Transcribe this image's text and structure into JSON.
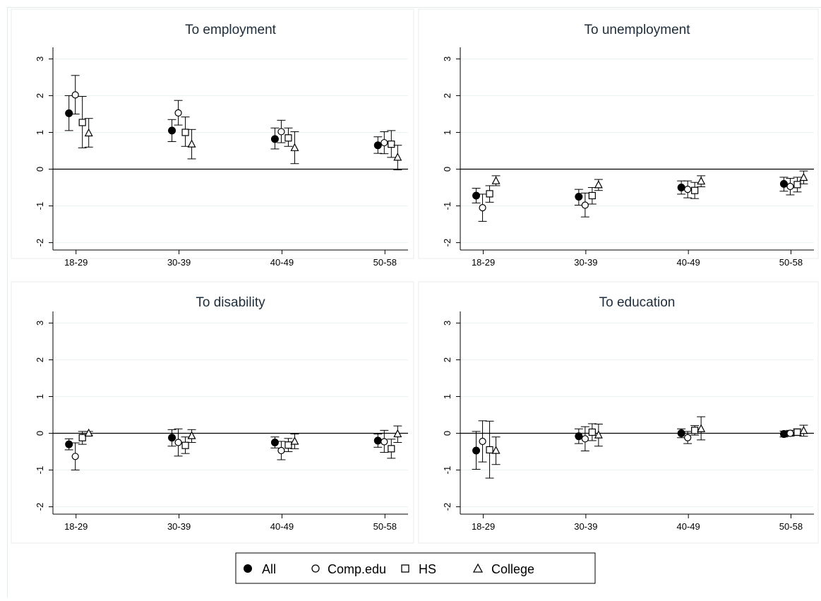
{
  "legend": {
    "items": [
      {
        "label": "All",
        "marker": "filled-circle"
      },
      {
        "label": "Comp.edu",
        "marker": "hollow-circle"
      },
      {
        "label": "HS",
        "marker": "hollow-square"
      },
      {
        "label": "College",
        "marker": "hollow-triangle"
      }
    ],
    "placement": "bottom-center"
  },
  "chart_data": [
    {
      "type": "scatter",
      "title": "To employment",
      "categories": [
        "18-29",
        "30-39",
        "40-49",
        "50-58"
      ],
      "yticks": [
        3,
        2,
        1,
        0,
        -1,
        -2
      ],
      "ylim": [
        -2.2,
        3.2
      ],
      "grid": true,
      "zero_line": true,
      "series": [
        {
          "name": "All",
          "values": [
            1.52,
            1.05,
            0.82,
            0.65
          ],
          "ci_low": [
            1.05,
            0.75,
            0.55,
            0.43
          ],
          "ci_high": [
            2.0,
            1.35,
            1.12,
            0.88
          ]
        },
        {
          "name": "Comp.edu",
          "values": [
            2.02,
            1.53,
            1.02,
            0.72
          ],
          "ci_low": [
            1.5,
            1.2,
            0.72,
            0.42
          ],
          "ci_high": [
            2.55,
            1.87,
            1.33,
            1.02
          ]
        },
        {
          "name": "HS",
          "values": [
            1.27,
            1.0,
            0.85,
            0.68
          ],
          "ci_low": [
            0.58,
            0.62,
            0.62,
            0.32
          ],
          "ci_high": [
            1.98,
            1.42,
            1.12,
            1.05
          ]
        },
        {
          "name": "College",
          "values": [
            0.98,
            0.68,
            0.58,
            0.32
          ],
          "ci_low": [
            0.6,
            0.28,
            0.15,
            -0.02
          ],
          "ci_high": [
            1.38,
            1.08,
            1.02,
            0.65
          ]
        }
      ]
    },
    {
      "type": "scatter",
      "title": "To unemployment",
      "categories": [
        "18-29",
        "30-39",
        "40-49",
        "50-58"
      ],
      "yticks": [
        3,
        2,
        1,
        0,
        -1,
        -2
      ],
      "ylim": [
        -2.2,
        3.2
      ],
      "grid": true,
      "zero_line": true,
      "series": [
        {
          "name": "All",
          "values": [
            -0.72,
            -0.75,
            -0.5,
            -0.4
          ],
          "ci_low": [
            -0.92,
            -0.98,
            -0.68,
            -0.6
          ],
          "ci_high": [
            -0.52,
            -0.55,
            -0.32,
            -0.22
          ]
        },
        {
          "name": "Comp.edu",
          "values": [
            -1.05,
            -0.98,
            -0.55,
            -0.47
          ],
          "ci_low": [
            -1.42,
            -1.3,
            -0.78,
            -0.7
          ],
          "ci_high": [
            -0.68,
            -0.65,
            -0.32,
            -0.25
          ]
        },
        {
          "name": "HS",
          "values": [
            -0.67,
            -0.72,
            -0.58,
            -0.42
          ],
          "ci_low": [
            -0.9,
            -0.95,
            -0.8,
            -0.62
          ],
          "ci_high": [
            -0.45,
            -0.5,
            -0.36,
            -0.22
          ]
        },
        {
          "name": "College",
          "values": [
            -0.32,
            -0.43,
            -0.33,
            -0.23
          ],
          "ci_low": [
            -0.45,
            -0.58,
            -0.48,
            -0.4
          ],
          "ci_high": [
            -0.18,
            -0.28,
            -0.18,
            -0.05
          ]
        }
      ]
    },
    {
      "type": "scatter",
      "title": "To disability",
      "categories": [
        "18-29",
        "30-39",
        "40-49",
        "50-58"
      ],
      "yticks": [
        3,
        2,
        1,
        0,
        -1,
        -2
      ],
      "ylim": [
        -2.2,
        3.2
      ],
      "grid": true,
      "zero_line": true,
      "series": [
        {
          "name": "All",
          "values": [
            -0.3,
            -0.12,
            -0.25,
            -0.2
          ],
          "ci_low": [
            -0.45,
            -0.35,
            -0.4,
            -0.38
          ],
          "ci_high": [
            -0.15,
            0.1,
            -0.1,
            -0.02
          ]
        },
        {
          "name": "Comp.edu",
          "values": [
            -0.63,
            -0.25,
            -0.47,
            -0.23
          ],
          "ci_low": [
            -1.0,
            -0.62,
            -0.72,
            -0.52
          ],
          "ci_high": [
            -0.26,
            0.12,
            -0.22,
            0.08
          ]
        },
        {
          "name": "HS",
          "values": [
            -0.12,
            -0.33,
            -0.32,
            -0.42
          ],
          "ci_low": [
            -0.3,
            -0.55,
            -0.5,
            -0.68
          ],
          "ci_high": [
            0.05,
            -0.1,
            -0.14,
            -0.16
          ]
        },
        {
          "name": "College",
          "values": [
            0.0,
            -0.07,
            -0.22,
            -0.02
          ],
          "ci_low": [
            -0.05,
            -0.25,
            -0.42,
            -0.25
          ],
          "ci_high": [
            0.05,
            0.1,
            -0.02,
            0.2
          ]
        }
      ]
    },
    {
      "type": "scatter",
      "title": "To education",
      "categories": [
        "18-29",
        "30-39",
        "40-49",
        "50-58"
      ],
      "yticks": [
        3,
        2,
        1,
        0,
        -1,
        -2
      ],
      "ylim": [
        -2.2,
        3.2
      ],
      "grid": true,
      "zero_line": true,
      "series": [
        {
          "name": "All",
          "values": [
            -0.47,
            -0.08,
            0.0,
            -0.02
          ],
          "ci_low": [
            -0.98,
            -0.28,
            -0.12,
            -0.1
          ],
          "ci_high": [
            0.05,
            0.12,
            0.12,
            0.06
          ]
        },
        {
          "name": "Comp.edu",
          "values": [
            -0.22,
            -0.15,
            -0.12,
            0.0
          ],
          "ci_low": [
            -0.78,
            -0.48,
            -0.28,
            -0.08
          ],
          "ci_high": [
            0.34,
            0.18,
            0.05,
            0.08
          ]
        },
        {
          "name": "HS",
          "values": [
            -0.45,
            0.03,
            0.08,
            0.03
          ],
          "ci_low": [
            -1.22,
            -0.2,
            -0.05,
            -0.06
          ],
          "ci_high": [
            0.33,
            0.26,
            0.21,
            0.12
          ]
        },
        {
          "name": "College",
          "values": [
            -0.47,
            -0.05,
            0.12,
            0.07
          ],
          "ci_low": [
            -0.85,
            -0.35,
            -0.18,
            -0.08
          ],
          "ci_high": [
            -0.1,
            0.25,
            0.45,
            0.22
          ]
        }
      ]
    }
  ]
}
